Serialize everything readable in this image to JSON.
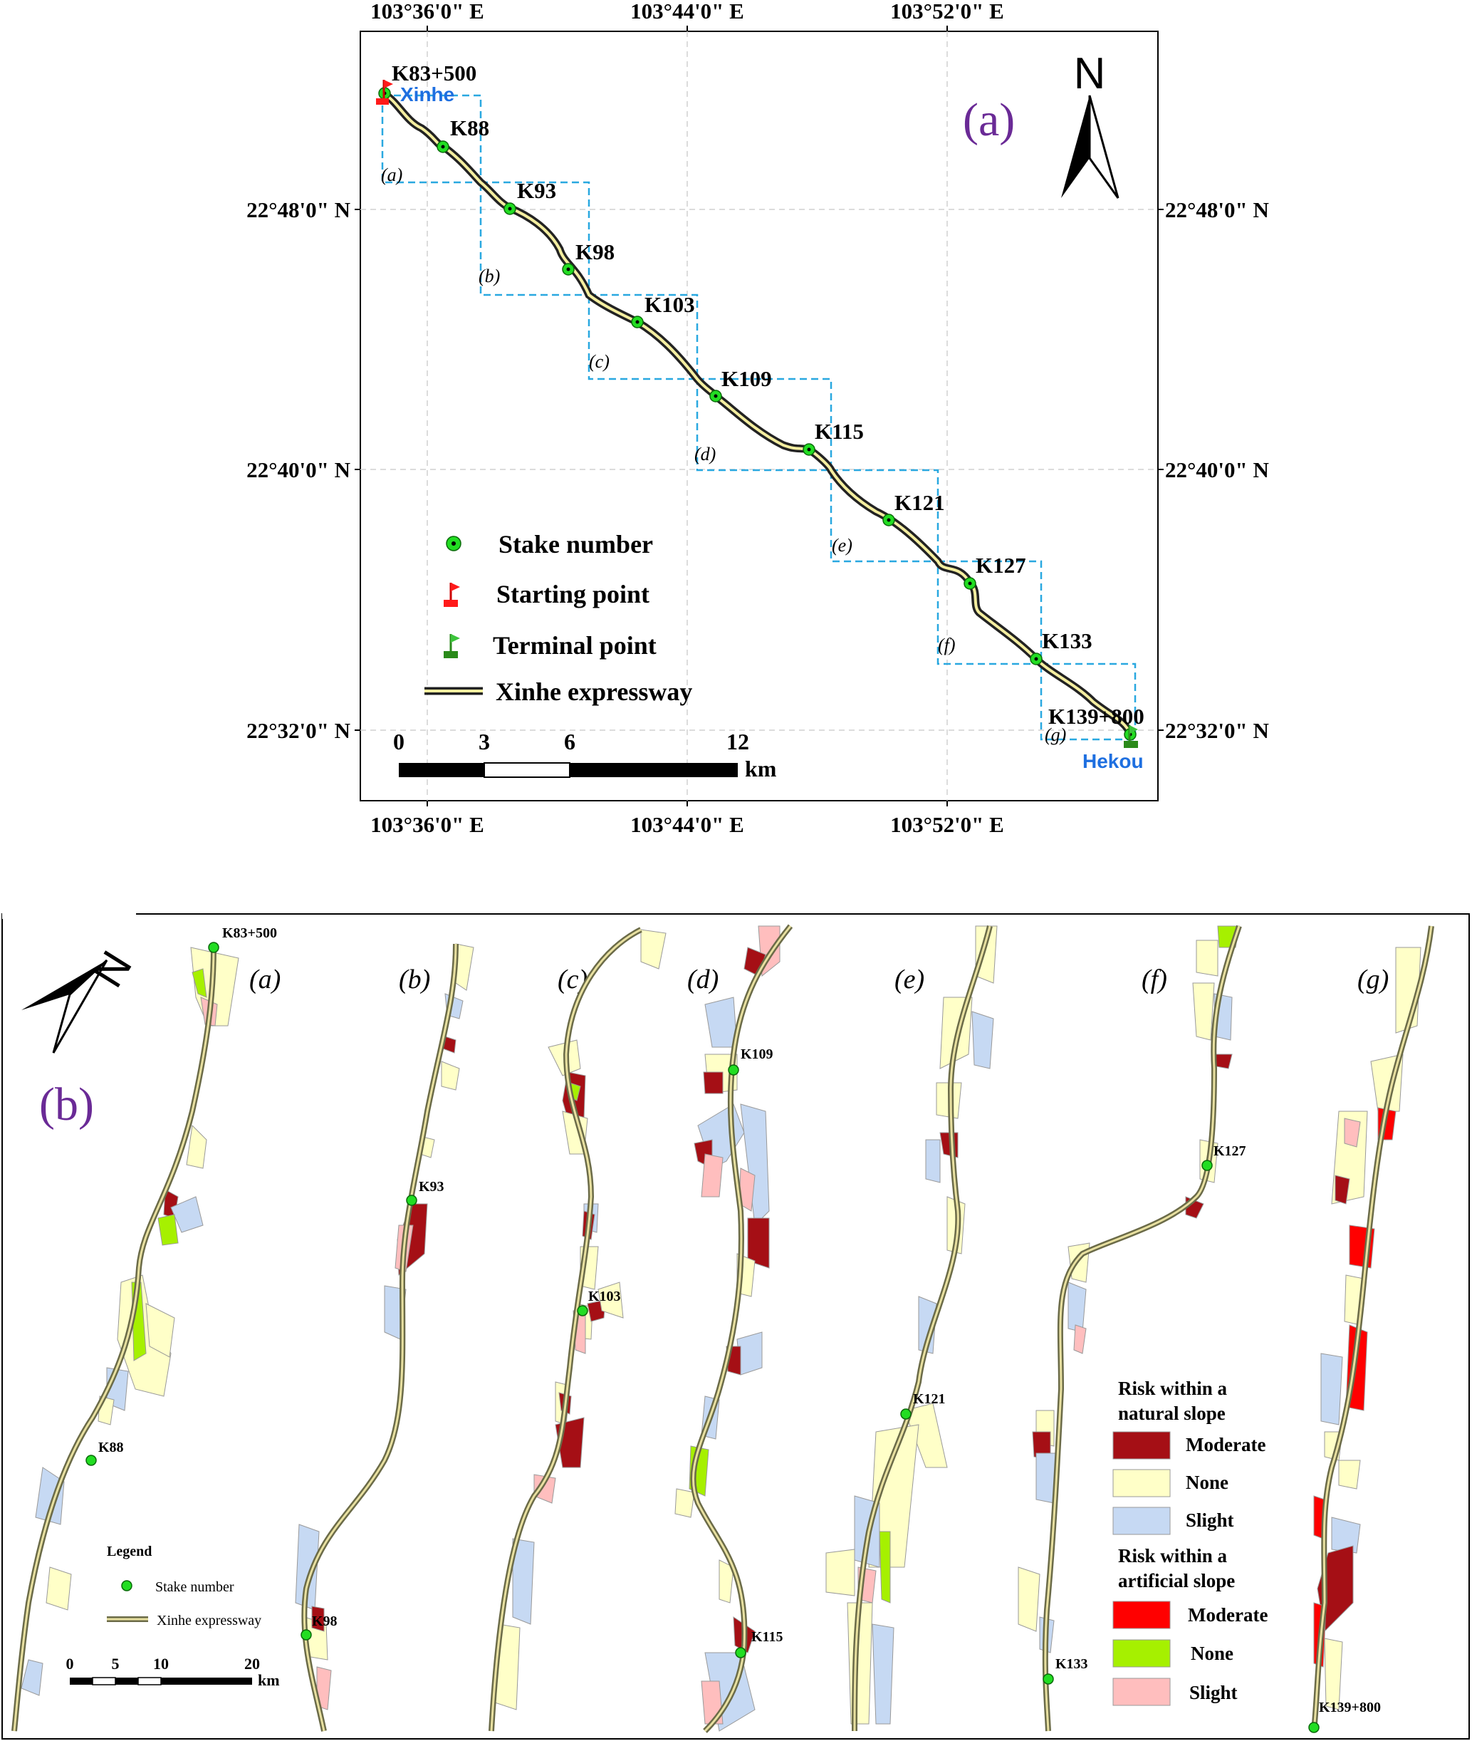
{
  "panel_a": {
    "label": "(a)",
    "north_label": "N",
    "lon_labels": [
      "103°36'0\" E",
      "103°44'0\" E",
      "103°52'0\" E"
    ],
    "lat_labels": [
      "22°48'0\" N",
      "22°40'0\" N",
      "22°32'0\" N"
    ],
    "start_name": "Xinhe",
    "end_name": "Hekou",
    "stakes": [
      "K83+500",
      "K88",
      "K93",
      "K98",
      "K103",
      "K109",
      "K115",
      "K121",
      "K127",
      "K133",
      "K139+800"
    ],
    "box_labels": [
      "(a)",
      "(b)",
      "(c)",
      "(d)",
      "(e)",
      "(f)",
      "(g)"
    ],
    "legend": {
      "stake": "Stake number",
      "start": "Starting point",
      "end": "Terminal point",
      "road": "Xinhe expressway"
    },
    "scale": {
      "ticks": [
        "0",
        "3",
        "6",
        "12"
      ],
      "unit": "km"
    }
  },
  "panel_b": {
    "label": "(b)",
    "north_label": "N",
    "strip_labels": [
      "(a)",
      "(b)",
      "(c)",
      "(d)",
      "(e)",
      "(f)",
      "(g)"
    ],
    "stakes": [
      "K83+500",
      "K88",
      "K93",
      "K98",
      "K103",
      "K109",
      "K115",
      "K121",
      "K127",
      "K133",
      "K139+800"
    ],
    "legend_small": {
      "title": "Legend",
      "stake": "Stake number",
      "road": "Xinhe expressway"
    },
    "scale": {
      "ticks": [
        "0",
        "5",
        "10",
        "20"
      ],
      "unit": "km"
    },
    "risk_legend": {
      "natural_title_1": "Risk within a",
      "natural_title_2": "natural slope",
      "natural": [
        {
          "label": "Moderate",
          "color": "#a50f15"
        },
        {
          "label": "None",
          "color": "#ffffc8"
        },
        {
          "label": "Slight",
          "color": "#c6d9f3"
        }
      ],
      "artificial_title_1": "Risk within a",
      "artificial_title_2": "artificial slope",
      "artificial": [
        {
          "label": "Moderate",
          "color": "#ff0000"
        },
        {
          "label": "None",
          "color": "#a6f000"
        },
        {
          "label": "Slight",
          "color": "#ffbebe"
        }
      ]
    }
  }
}
